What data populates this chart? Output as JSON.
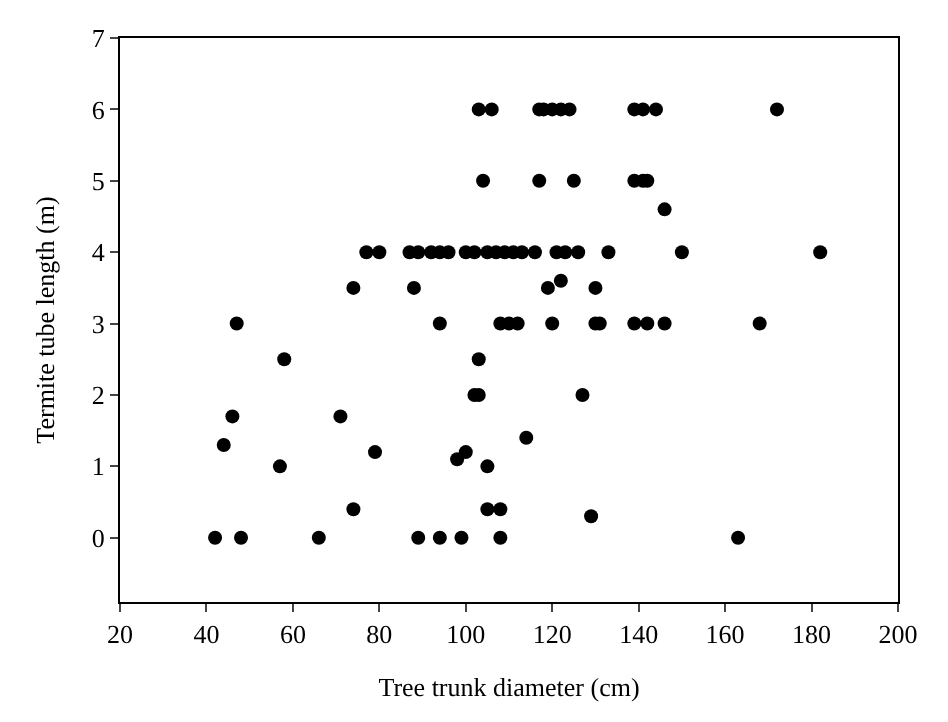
{
  "chart_data": {
    "type": "scatter",
    "xlabel": "Tree trunk diameter (cm)",
    "ylabel": "Termite tube length (m)",
    "x": [
      42,
      48,
      66,
      89,
      94,
      99,
      108,
      163,
      74,
      105,
      108,
      129,
      57,
      105,
      98,
      100,
      79,
      114,
      44,
      46,
      71,
      102,
      103,
      127,
      58,
      103,
      47,
      94,
      108,
      110,
      112,
      120,
      130,
      131,
      139,
      142,
      146,
      168,
      74,
      88,
      119,
      130,
      122,
      77,
      80,
      87,
      89,
      92,
      94,
      96,
      100,
      102,
      105,
      107,
      109,
      111,
      113,
      116,
      121,
      123,
      126,
      133,
      150,
      182,
      146,
      104,
      117,
      125,
      139,
      141,
      142,
      103,
      106,
      117,
      118,
      120,
      122,
      124,
      139,
      141,
      144,
      172
    ],
    "values": [
      0,
      0,
      0,
      0,
      0,
      0,
      0,
      0,
      0.4,
      0.4,
      0.4,
      0.3,
      1,
      1,
      1.1,
      1.2,
      1.2,
      1.4,
      1.3,
      1.7,
      1.7,
      2,
      2,
      2,
      2.5,
      2.5,
      3,
      3,
      3,
      3,
      3,
      3,
      3,
      3,
      3,
      3,
      3,
      3,
      3.5,
      3.5,
      3.5,
      3.5,
      3.6,
      4,
      4,
      4,
      4,
      4,
      4,
      4,
      4,
      4,
      4,
      4,
      4,
      4,
      4,
      4,
      4,
      4,
      4,
      4,
      4,
      4,
      4.6,
      5,
      5,
      5,
      5,
      5,
      5,
      6,
      6,
      6,
      6,
      6,
      6,
      6,
      6,
      6,
      6,
      6
    ],
    "color": "#000000",
    "marker": "circle",
    "xlim": [
      20,
      200
    ],
    "xticks": [
      20,
      40,
      60,
      80,
      100,
      120,
      140,
      160,
      180,
      200
    ],
    "ylim": [
      -0.9,
      7
    ],
    "yticks": [
      0,
      1,
      2,
      3,
      4,
      5,
      6,
      7
    ],
    "grid": false
  }
}
